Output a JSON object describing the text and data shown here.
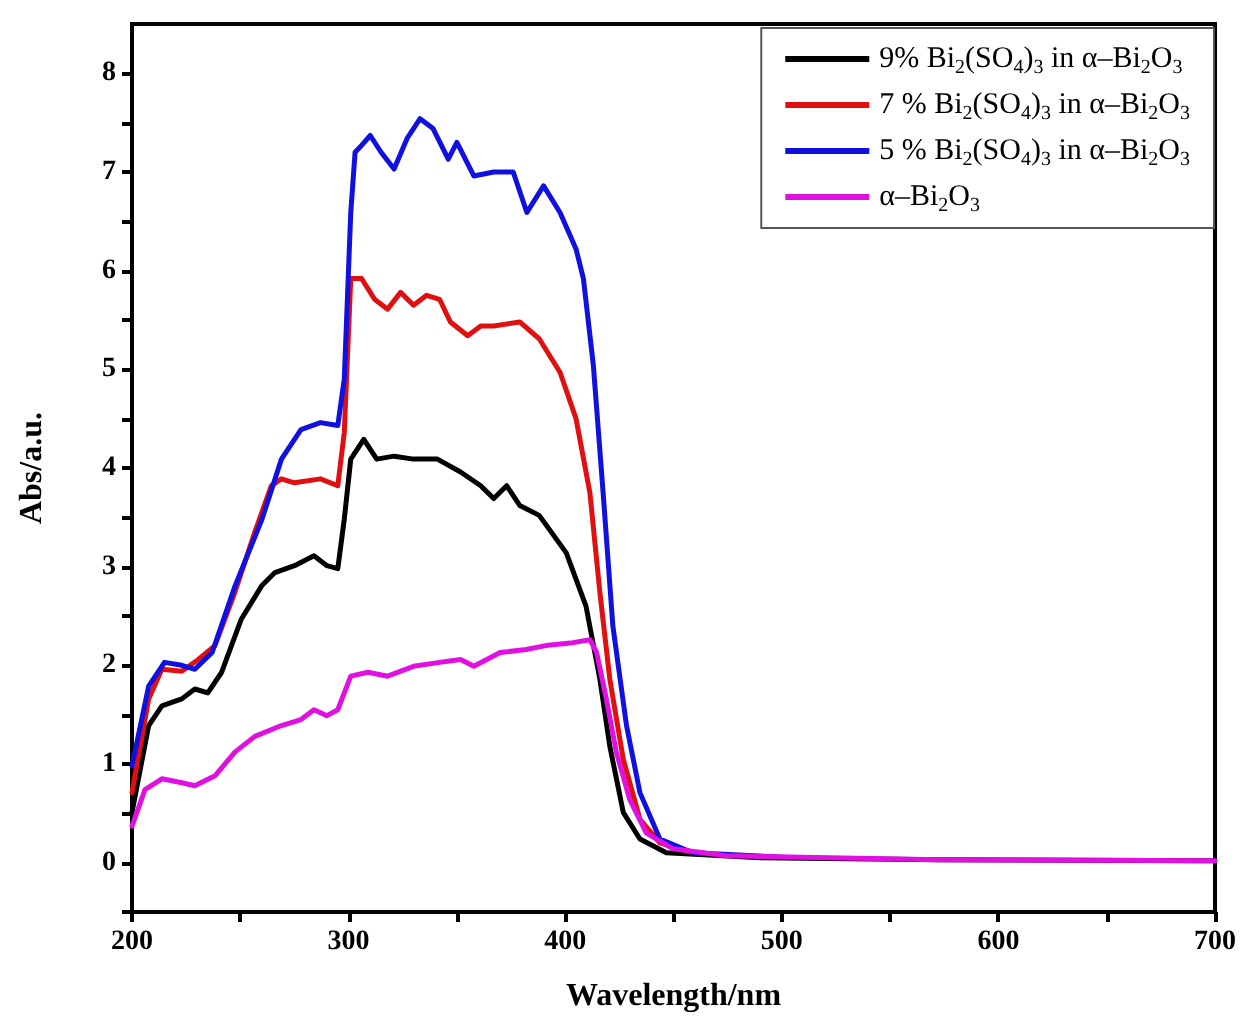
{
  "chart_data": {
    "type": "line",
    "xlabel": "Wavelength/nm",
    "ylabel": "Abs/a.u.",
    "xlim": [
      200,
      700
    ],
    "ylim": [
      -0.5,
      8.5
    ],
    "xticks": [
      200,
      {
        "value": 250,
        "label": null
      },
      300,
      {
        "value": 350,
        "label": null
      },
      400,
      {
        "value": 450,
        "label": null
      },
      500,
      {
        "value": 550,
        "label": null
      },
      600,
      {
        "value": 650,
        "label": null
      },
      700
    ],
    "yticks": [
      {
        "value": -0.5,
        "label": null
      },
      0,
      {
        "value": 0.5,
        "label": null
      },
      1,
      {
        "value": 1.5,
        "label": null
      },
      2,
      {
        "value": 2.5,
        "label": null
      },
      3,
      {
        "value": 3.5,
        "label": null
      },
      4,
      {
        "value": 4.5,
        "label": null
      },
      5,
      {
        "value": 5.5,
        "label": null
      },
      6,
      {
        "value": 6.5,
        "label": null
      },
      7,
      {
        "value": 7.5,
        "label": null
      },
      8
    ],
    "legend": "top right",
    "grid": false,
    "marker": "none",
    "line_style": "solid",
    "series": [
      {
        "name": "9% Bi$_{2}$(SO$_{4}$)$_{3}$ in α–Bi$_{2}$O$_{3}$",
        "color": "#000000",
        "x": [
          200,
          207.7,
          213.8,
          223,
          229,
          235,
          241.4,
          250.5,
          260,
          266,
          275,
          284,
          290,
          295,
          298,
          301,
          307,
          313,
          321,
          330,
          341,
          351.7,
          361,
          367,
          373,
          379,
          388,
          400.5,
          409.6,
          416,
          420.6,
          426.8,
          434.5,
          446.7,
          490,
          572,
          700
        ],
        "values": [
          0.51,
          1.39,
          1.59,
          1.66,
          1.76,
          1.72,
          1.93,
          2.47,
          2.81,
          2.94,
          3.01,
          3.11,
          3.01,
          2.98,
          3.48,
          4.09,
          4.29,
          4.09,
          4.12,
          4.09,
          4.09,
          3.96,
          3.82,
          3.69,
          3.82,
          3.62,
          3.52,
          3.14,
          2.6,
          1.86,
          1.18,
          0.51,
          0.24,
          0.1,
          0.05,
          0.03,
          0.02
        ]
      },
      {
        "name": "7 % Bi$_{2}$(SO$_{4}$)$_{3}$ in α–Bi$_{2}$O$_{3}$",
        "color": "#e01010",
        "x": [
          200,
          207.7,
          213.8,
          223,
          230.6,
          238.3,
          247.5,
          256.7,
          264.3,
          269,
          275,
          287,
          295,
          298,
          301,
          306,
          312,
          318,
          324,
          330,
          336,
          342,
          347,
          355,
          361,
          367,
          379,
          388,
          397.6,
          405,
          411.4,
          416,
          420.6,
          426.8,
          434.5,
          443.7,
          459
        ],
        "values": [
          0.71,
          1.66,
          1.96,
          1.94,
          2.06,
          2.2,
          2.74,
          3.35,
          3.82,
          3.89,
          3.85,
          3.89,
          3.82,
          4.36,
          5.92,
          5.92,
          5.71,
          5.61,
          5.78,
          5.65,
          5.75,
          5.71,
          5.48,
          5.34,
          5.44,
          5.44,
          5.48,
          5.31,
          4.97,
          4.5,
          3.75,
          2.74,
          1.86,
          1.05,
          0.44,
          0.2,
          0.1
        ]
      },
      {
        "name": "5 % Bi$_{2}$(SO$_{4}$)$_{3}$ in α–Bi$_{2}$O$_{3}$",
        "color": "#1010e0",
        "x": [
          200,
          207.7,
          215,
          223,
          229,
          237,
          247.5,
          260,
          269,
          278,
          287,
          295,
          298,
          301,
          303,
          306,
          310,
          315,
          321,
          327,
          333,
          339,
          346,
          350,
          357.8,
          367,
          376,
          382.3,
          390,
          397.6,
          405,
          408.4,
          413,
          417.5,
          422,
          428.3,
          434.5,
          443.7,
          459,
          505
        ],
        "values": [
          0.98,
          1.79,
          2.03,
          2.0,
          1.96,
          2.13,
          2.8,
          3.48,
          4.09,
          4.39,
          4.46,
          4.43,
          4.9,
          6.59,
          7.2,
          7.27,
          7.37,
          7.2,
          7.03,
          7.34,
          7.54,
          7.44,
          7.13,
          7.3,
          6.96,
          7.0,
          7.0,
          6.59,
          6.86,
          6.59,
          6.22,
          5.92,
          5.04,
          3.75,
          2.4,
          1.39,
          0.71,
          0.24,
          0.1,
          0.05
        ]
      },
      {
        "name": "α–Bi$_{2}$O$_{3}$",
        "color": "#e010e0",
        "x": [
          200,
          206,
          213.8,
          223,
          229,
          238.3,
          247.5,
          256.7,
          269,
          278,
          284,
          290,
          295,
          301,
          309,
          318,
          330,
          342,
          351.7,
          357.8,
          370,
          382,
          391,
          403.6,
          411.4,
          414.5,
          419,
          423.6,
          429.8,
          437.5,
          449.8,
          474,
          572,
          700
        ],
        "values": [
          0.37,
          0.74,
          0.85,
          0.81,
          0.78,
          0.88,
          1.12,
          1.28,
          1.39,
          1.45,
          1.55,
          1.49,
          1.55,
          1.89,
          1.93,
          1.89,
          1.99,
          2.03,
          2.06,
          1.99,
          2.13,
          2.16,
          2.2,
          2.23,
          2.26,
          2.13,
          1.66,
          1.12,
          0.64,
          0.3,
          0.14,
          0.07,
          0.03,
          0.02
        ]
      }
    ]
  }
}
